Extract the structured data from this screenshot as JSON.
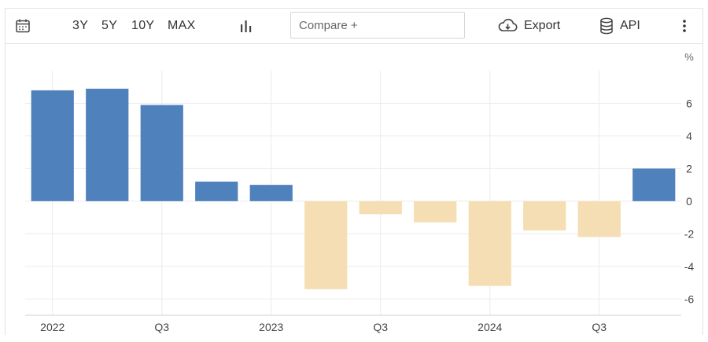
{
  "toolbar": {
    "ranges": [
      "3Y",
      "5Y",
      "10Y",
      "MAX"
    ],
    "compare_placeholder": "Compare +",
    "export_label": "Export",
    "api_label": "API",
    "icons": {
      "calendar": "calendar-icon",
      "chart_type": "bar-chart-icon",
      "export": "cloud-download-icon",
      "api": "database-icon",
      "more": "more-vertical-icon"
    }
  },
  "chart_data": {
    "type": "bar",
    "unit_label": "%",
    "x_tick_labels": [
      "2022",
      "Q3",
      "2023",
      "Q3",
      "2024",
      "Q3"
    ],
    "x_tick_positions": [
      0,
      2,
      4,
      6,
      8,
      10
    ],
    "values": [
      6.8,
      6.9,
      5.9,
      1.2,
      1.0,
      -5.4,
      -0.8,
      -1.3,
      -5.2,
      -1.8,
      -2.2,
      2.0
    ],
    "ylim": [
      -7,
      8
    ],
    "yticks": [
      6,
      4,
      2,
      0,
      -2,
      -4,
      -6
    ],
    "colors": {
      "positive": "#4f81bd",
      "negative": "#f5deb3",
      "grid": "#ececec",
      "axis": "#d0d0d0"
    },
    "grid": true,
    "legend": "none"
  }
}
